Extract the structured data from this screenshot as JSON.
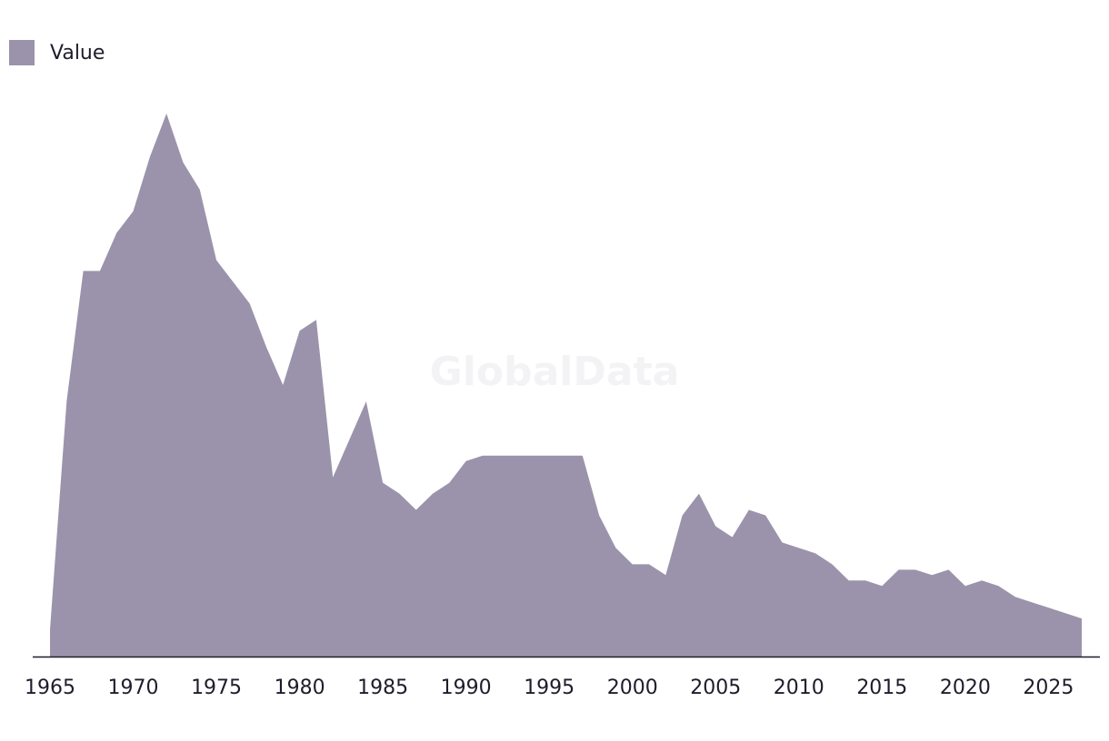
{
  "chart_data": {
    "type": "area",
    "legend": {
      "placement": "top-left",
      "entries": [
        "Value"
      ]
    },
    "watermark": "GlobalData",
    "series": [
      {
        "name": "Value",
        "color": "#9b93ab",
        "x": [
          1965,
          1966,
          1967,
          1968,
          1969,
          1970,
          1971,
          1972,
          1973,
          1974,
          1975,
          1976,
          1977,
          1978,
          1979,
          1980,
          1981,
          1982,
          1983,
          1984,
          1985,
          1986,
          1987,
          1988,
          1989,
          1990,
          1991,
          1992,
          1993,
          1994,
          1995,
          1996,
          1997,
          1998,
          1999,
          2000,
          2001,
          2002,
          2003,
          2004,
          2005,
          2006,
          2007,
          2008,
          2009,
          2010,
          2011,
          2012,
          2013,
          2014,
          2015,
          2016,
          2017,
          2018,
          2019,
          2020,
          2021,
          2022,
          2023,
          2024,
          2025,
          2026,
          2027
        ],
        "values": [
          5,
          47,
          71,
          71,
          78,
          82,
          92,
          100,
          91,
          86,
          73,
          69,
          65,
          57,
          50,
          60,
          62,
          33,
          40,
          47,
          32,
          30,
          27,
          30,
          32,
          36,
          37,
          37,
          37,
          37,
          37,
          37,
          37,
          26,
          20,
          17,
          17,
          15,
          26,
          30,
          24,
          22,
          27,
          26,
          21,
          20,
          19,
          17,
          14,
          14,
          13,
          16,
          16,
          15,
          16,
          13,
          14,
          13,
          11,
          10,
          9,
          8,
          7
        ]
      }
    ],
    "xticks": [
      "1965",
      "1970",
      "1975",
      "1980",
      "1985",
      "1990",
      "1995",
      "2000",
      "2005",
      "2010",
      "2015",
      "2020",
      "2025"
    ],
    "xlim": [
      1965,
      2027
    ],
    "ylim": [
      0,
      100
    ],
    "grid": false,
    "title": "",
    "xlabel": "",
    "ylabel": ""
  }
}
